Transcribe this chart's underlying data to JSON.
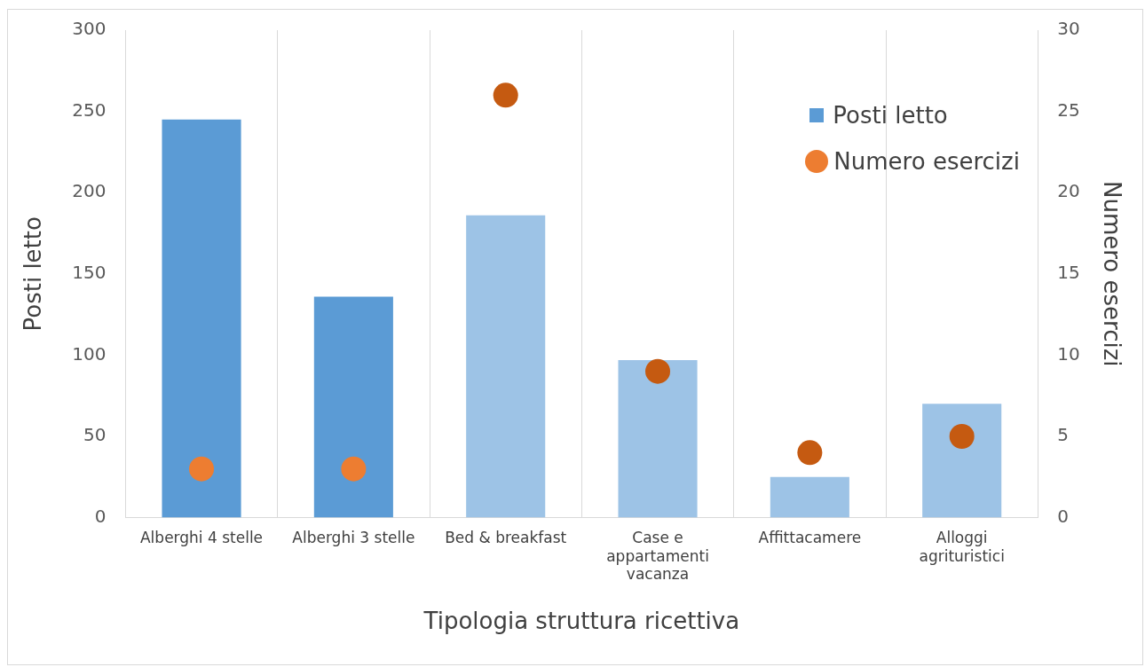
{
  "chart_data": {
    "type": "bar",
    "xlabel": "Tipologia struttura ricettiva",
    "ylabel": "Posti letto",
    "y2label": "Numero esercizi",
    "categories": [
      "Alberghi 4 stelle",
      "Alberghi 3 stelle",
      "Bed & breakfast",
      "Case e appartamenti vacanza",
      "Affittacamere",
      "Alloggi agrituristici"
    ],
    "series": [
      {
        "name": "Posti letto",
        "color": "#5b9bd5",
        "colors": [
          "#5b9bd5",
          "#5b9bd5",
          "#9dc3e6",
          "#9dc3e6",
          "#9dc3e6",
          "#9dc3e6"
        ],
        "values": [
          245,
          136,
          186,
          97,
          25,
          70
        ]
      },
      {
        "name": "Numero esercizi",
        "type": "scatter",
        "axis": "y2",
        "marker": "circle",
        "color": "#ed7d31",
        "colors": [
          "#ed7d31",
          "#ed7d31",
          "#c55a11",
          "#c55a11",
          "#c55a11",
          "#c55a11"
        ],
        "values": [
          3,
          3,
          26,
          9,
          4,
          5
        ]
      }
    ],
    "ylim": [
      0,
      300
    ],
    "yticks": [
      0,
      50,
      100,
      150,
      200,
      250,
      300
    ],
    "y2lim": [
      0,
      30
    ],
    "y2ticks": [
      0,
      5,
      10,
      15,
      20,
      25,
      30
    ],
    "grid": "x",
    "legend": "top right"
  }
}
